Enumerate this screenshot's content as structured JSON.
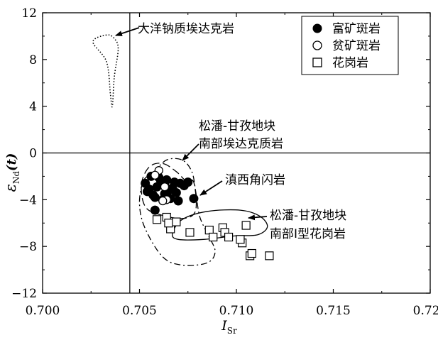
{
  "chart_data": {
    "type": "scatter",
    "title": "",
    "xlabel_main": "I",
    "xlabel_sub": "Sr",
    "ylabel_main": "ε",
    "ylabel_sub": "Nd",
    "ylabel_tail": "(t)",
    "xlim": [
      0.7,
      0.72
    ],
    "ylim": [
      -12,
      12
    ],
    "x_ticks": [
      "0.700",
      "0.705",
      "0.710",
      "0.715",
      "0.720"
    ],
    "y_ticks": [
      "12",
      "8",
      "4",
      "0",
      "−4",
      "−8",
      "−12"
    ],
    "grid": false,
    "legend_position": "top-right",
    "reference_lines": {
      "x": 0.7045,
      "y": 0
    },
    "series": [
      {
        "name": "富矿斑岩",
        "marker": "filled-circle",
        "points": [
          [
            0.7053,
            -2.6
          ],
          [
            0.7055,
            -3.1
          ],
          [
            0.7057,
            -3.6
          ],
          [
            0.7054,
            -3.3
          ],
          [
            0.7059,
            -2.9
          ],
          [
            0.7061,
            -2.4
          ],
          [
            0.7063,
            -2.8
          ],
          [
            0.7065,
            -3.2
          ],
          [
            0.7067,
            -3.0
          ],
          [
            0.7069,
            -3.4
          ],
          [
            0.7071,
            -2.6
          ],
          [
            0.7058,
            -3.8
          ],
          [
            0.7062,
            -4.0
          ],
          [
            0.7066,
            -3.9
          ],
          [
            0.706,
            -2.1
          ],
          [
            0.7064,
            -2.3
          ],
          [
            0.7073,
            -2.8
          ],
          [
            0.7056,
            -2.0
          ],
          [
            0.707,
            -4.1
          ],
          [
            0.7078,
            -3.9
          ],
          [
            0.7058,
            -4.9
          ],
          [
            0.7068,
            -2.5
          ],
          [
            0.7063,
            -3.5
          ],
          [
            0.7075,
            -2.5
          ]
        ]
      },
      {
        "name": "贫矿斑岩",
        "marker": "open-circle",
        "points": [
          [
            0.706,
            -1.5
          ],
          [
            0.7058,
            -1.9
          ],
          [
            0.7063,
            -2.9
          ],
          [
            0.7064,
            -4.0
          ],
          [
            0.7062,
            -4.1
          ]
        ]
      },
      {
        "name": "花岗岩",
        "marker": "open-square",
        "points": [
          [
            0.7059,
            -5.7
          ],
          [
            0.7064,
            -5.5
          ],
          [
            0.7066,
            -6.5
          ],
          [
            0.7069,
            -5.9
          ],
          [
            0.7065,
            -6.0
          ],
          [
            0.7076,
            -6.8
          ],
          [
            0.7086,
            -6.6
          ],
          [
            0.7088,
            -7.2
          ],
          [
            0.7093,
            -6.4
          ],
          [
            0.7094,
            -6.8
          ],
          [
            0.7096,
            -7.2
          ],
          [
            0.7103,
            -7.7
          ],
          [
            0.7105,
            -6.2
          ],
          [
            0.7102,
            -7.4
          ],
          [
            0.7107,
            -8.8
          ],
          [
            0.7108,
            -8.6
          ],
          [
            0.7117,
            -8.8
          ]
        ]
      }
    ],
    "fields": [
      {
        "label": "大洋钠质埃达克岩",
        "style": "dotted",
        "points": [
          [
            0.7033,
            10.1
          ],
          [
            0.7026,
            9.5
          ],
          [
            0.7033,
            7.8
          ],
          [
            0.7035,
            5.0
          ],
          [
            0.7036,
            4.0
          ],
          [
            0.7037,
            6.5
          ],
          [
            0.7039,
            8.9
          ],
          [
            0.7037,
            9.8
          ]
        ]
      },
      {
        "label": "松潘-甘孜地块南部埃达克质岩",
        "style": "dash-dot",
        "points": [
          [
            0.7052,
            -2.4
          ],
          [
            0.7057,
            -1.7
          ],
          [
            0.7064,
            -0.6
          ],
          [
            0.7072,
            -0.6
          ],
          [
            0.7077,
            -1.6
          ],
          [
            0.7079,
            -3.3
          ],
          [
            0.7081,
            -5.4
          ],
          [
            0.7085,
            -6.9
          ],
          [
            0.7089,
            -8.4
          ],
          [
            0.7085,
            -9.4
          ],
          [
            0.7072,
            -9.6
          ],
          [
            0.7062,
            -8.9
          ],
          [
            0.7053,
            -6.5
          ],
          [
            0.705,
            -4.4
          ]
        ]
      },
      {
        "label": "滇西角闪岩",
        "style": "long-dash",
        "points": [
          [
            0.7051,
            -2.7
          ],
          [
            0.7055,
            -1.2
          ],
          [
            0.7062,
            -0.9
          ],
          [
            0.7069,
            -1.6
          ],
          [
            0.7074,
            -2.4
          ],
          [
            0.7078,
            -2.5
          ],
          [
            0.7079,
            -4.9
          ],
          [
            0.7073,
            -5.6
          ],
          [
            0.7061,
            -5.3
          ],
          [
            0.7053,
            -4.6
          ]
        ]
      },
      {
        "label": "松潘-甘孜地块南部I型花岗岩",
        "style": "solid",
        "points": [
          [
            0.7067,
            -6.9
          ],
          [
            0.7072,
            -5.7
          ],
          [
            0.7085,
            -5.0
          ],
          [
            0.7102,
            -4.9
          ],
          [
            0.7112,
            -5.4
          ],
          [
            0.7116,
            -6.3
          ],
          [
            0.7111,
            -7.0
          ],
          [
            0.7099,
            -7.1
          ],
          [
            0.7083,
            -7.4
          ],
          [
            0.707,
            -7.4
          ]
        ]
      }
    ],
    "annotations": [
      {
        "id": "oceanic",
        "text": "大洋钠质埃达克岩"
      },
      {
        "id": "songpan_adakite_1",
        "text": "松潘-甘孜地块"
      },
      {
        "id": "songpan_adakite_2",
        "text": "南部埃达克质岩"
      },
      {
        "id": "dianxi",
        "text": "滇西角闪岩"
      },
      {
        "id": "songpan_granite_1",
        "text": "松潘-甘孜地块"
      },
      {
        "id": "songpan_granite_2",
        "text": "南部I型花岗岩"
      }
    ]
  }
}
